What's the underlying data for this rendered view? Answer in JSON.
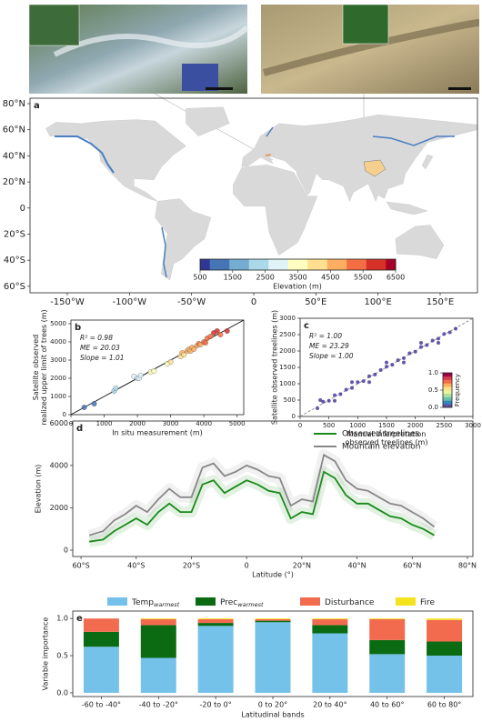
{
  "chart_data": [
    {
      "type": "map",
      "panel": "a",
      "xlim": [
        -180,
        180
      ],
      "ylim": [
        -65,
        84.2
      ],
      "xticks": [
        {
          "value": -150,
          "label": "-150°W"
        },
        {
          "value": -100,
          "label": "-100°W"
        },
        {
          "value": -50,
          "label": "-50°W"
        },
        0,
        {
          "value": 50,
          "label": "50°E"
        },
        {
          "value": 100,
          "label": "100°E"
        },
        {
          "value": 150,
          "label": "150°E"
        }
      ],
      "yticks": [
        {
          "value": 80,
          "label": "80°N"
        },
        {
          "value": 60,
          "label": "60°N"
        },
        {
          "value": 40,
          "label": "40°N"
        },
        {
          "value": 20,
          "label": "20°N"
        },
        0,
        {
          "value": -20,
          "label": "20°S"
        },
        {
          "value": -40,
          "label": "40°S"
        },
        {
          "value": -60,
          "label": "60°S"
        }
      ],
      "colorbar": {
        "label": "Elevation (m)",
        "lim": [
          500,
          6500
        ],
        "ticks": [
          500,
          1500,
          2500,
          3500,
          4500,
          5500,
          6500
        ]
      }
    },
    {
      "type": "scatter",
      "panel": "b",
      "xlabel": "In situ measurement (m)",
      "ylabel": [
        "Satellite observed",
        "realized upper limit of trees (m)"
      ],
      "annotations": [
        "R² = 0.98",
        "ME = 20.03",
        "Slope = 1.01"
      ],
      "xlim": [
        0,
        5200
      ],
      "ylim": [
        0,
        5200
      ],
      "xticks": [
        0,
        1000,
        2000,
        3000,
        4000,
        5000
      ],
      "yticks": [
        0,
        1000,
        2000,
        3000,
        4000,
        5000
      ],
      "x": [
        400,
        700,
        1300,
        1350,
        1900,
        2000,
        2050,
        2100,
        2400,
        2500,
        2900,
        3000,
        3300,
        3350,
        3400,
        3500,
        3550,
        3600,
        3650,
        3700,
        3800,
        3850,
        3900,
        4000,
        4050,
        4100,
        4200,
        4300,
        4400,
        4500,
        4700
      ],
      "y": [
        400,
        600,
        1300,
        1450,
        2100,
        2000,
        2000,
        2150,
        2350,
        2400,
        2800,
        2900,
        3200,
        3400,
        3300,
        3500,
        3600,
        3500,
        3700,
        3600,
        3800,
        3900,
        3850,
        4000,
        3950,
        4200,
        4300,
        4500,
        4600,
        4400,
        4600
      ]
    },
    {
      "type": "scatter",
      "panel": "c",
      "xlabel": [
        "Manual interpretation",
        "observed treelines (m)"
      ],
      "ylabel": "Satellite observed treelines (m)",
      "annotations": [
        "R² = 1.00",
        "ME = 23.29",
        "Slope = 1.00"
      ],
      "xlim": [
        0,
        3000
      ],
      "ylim": [
        0,
        3000
      ],
      "xticks": [
        0,
        500,
        1000,
        1500,
        2000,
        2500,
        3000
      ],
      "yticks": [
        0,
        500,
        1000,
        1500,
        2000,
        2500,
        3000
      ],
      "color": "#4b3a9a",
      "x": [
        300,
        400,
        500,
        600,
        700,
        800,
        900,
        1000,
        1100,
        1200,
        1300,
        1400,
        1500,
        1600,
        1700,
        1800,
        1900,
        2000,
        2100,
        2200,
        2300,
        2400,
        2500,
        2600,
        2700,
        350,
        600,
        900,
        1200,
        1500,
        1800,
        2100,
        2400
      ],
      "y": [
        250,
        450,
        480,
        650,
        680,
        820,
        870,
        1050,
        1080,
        1230,
        1280,
        1420,
        1520,
        1580,
        1720,
        1780,
        1930,
        1980,
        2120,
        2180,
        2320,
        2380,
        2520,
        2570,
        2680,
        500,
        480,
        1050,
        1050,
        1650,
        1650,
        2250,
        2250
      ],
      "colorbar": {
        "label": "Frequency",
        "lim": [
          0,
          1
        ],
        "ticks": [
          {
            "value": 0,
            "label": "0.0"
          },
          {
            "value": 0.5,
            "label": "0.5"
          },
          {
            "value": 1,
            "label": "1.0"
          }
        ]
      }
    },
    {
      "type": "line",
      "panel": "d",
      "xlabel": "Latitude (°)",
      "ylabel": "Elevation (m)",
      "xlim": [
        -63,
        82
      ],
      "ylim": [
        -300,
        6100
      ],
      "xticks": [
        {
          "value": -60,
          "label": "60°S"
        },
        {
          "value": -40,
          "label": "40°S"
        },
        {
          "value": -20,
          "label": "20°S"
        },
        0,
        {
          "value": 20,
          "label": "20°N"
        },
        {
          "value": 40,
          "label": "40°N"
        },
        {
          "value": 60,
          "label": "60°N"
        },
        {
          "value": 80,
          "label": "80°N"
        }
      ],
      "yticks": [
        0,
        2000,
        4000,
        6000
      ],
      "x": [
        -57,
        -52,
        -48,
        -44,
        -40,
        -36,
        -32,
        -28,
        -24,
        -20,
        -16,
        -12,
        -8,
        -4,
        0,
        4,
        8,
        12,
        16,
        20,
        24,
        28,
        32,
        36,
        40,
        44,
        48,
        52,
        56,
        60,
        64,
        68
      ],
      "series": [
        {
          "name": "Observed treelines",
          "color": "#1a8a1a",
          "values": [
            400,
            500,
            900,
            1200,
            1500,
            1200,
            1800,
            2200,
            1800,
            1800,
            3100,
            3300,
            2700,
            3000,
            3300,
            3100,
            2800,
            2700,
            1500,
            1800,
            1700,
            3700,
            3400,
            2600,
            2200,
            2200,
            1900,
            1600,
            1500,
            1200,
            1000,
            700
          ]
        },
        {
          "name": "Mountain elevation",
          "color": "#888888",
          "values": [
            700,
            900,
            1400,
            1700,
            2100,
            1800,
            2400,
            2900,
            2500,
            2500,
            3900,
            4100,
            3500,
            3700,
            4000,
            3800,
            3500,
            3400,
            2100,
            2400,
            2300,
            4500,
            4200,
            3300,
            2900,
            2800,
            2500,
            2200,
            2100,
            1800,
            1500,
            1100
          ]
        }
      ]
    },
    {
      "type": "stacked-bar",
      "panel": "e",
      "xlabel": "Latitudinal bands",
      "ylabel": "Variable importance",
      "ylim": [
        -0.05,
        1.1
      ],
      "yticks": [
        {
          "value": 0,
          "label": "0.0"
        },
        {
          "value": 0.5,
          "label": "0.5"
        },
        {
          "value": 1,
          "label": "1.0"
        }
      ],
      "categories": [
        "-60 to -40°",
        "-40 to -20°",
        "-20 to 0°",
        "0 to 20°",
        "20 to 40°",
        "40 to 60°",
        "60 to 80°"
      ],
      "series": [
        {
          "name": "Temp",
          "subscript": "warmest",
          "color": "#74c2ea",
          "values": [
            0.62,
            0.47,
            0.9,
            0.95,
            0.8,
            0.52,
            0.5
          ]
        },
        {
          "name": "Prec",
          "subscript": "warmest",
          "color": "#0b6b12",
          "values": [
            0.2,
            0.44,
            0.04,
            0.02,
            0.11,
            0.19,
            0.19
          ]
        },
        {
          "name": "Disturbance",
          "color": "#f26b4f",
          "values": [
            0.18,
            0.08,
            0.05,
            0.02,
            0.08,
            0.28,
            0.29
          ]
        },
        {
          "name": "Fire",
          "color": "#f5e31d",
          "values": [
            0,
            0.01,
            0.01,
            0.01,
            0.01,
            0.01,
            0.02
          ]
        }
      ]
    }
  ]
}
